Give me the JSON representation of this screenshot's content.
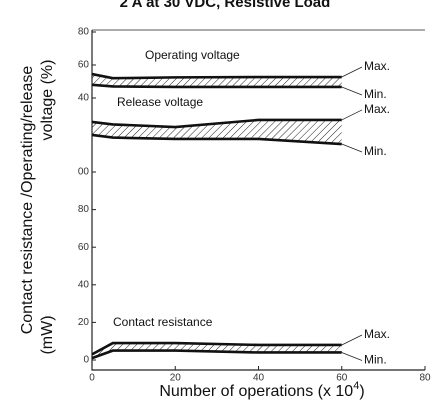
{
  "chart_data": {
    "type": "line",
    "title": "2 A at 30 VDC, Resistive Load",
    "xlabel": [
      "Number of operations (x 10",
      "4",
      ")"
    ],
    "ylabel": [
      "Contact resistance /Operating/release",
      "voltage (%)",
      "(mW)"
    ],
    "xlim": [
      0,
      80
    ],
    "xticks": [
      0,
      20,
      40,
      60,
      80
    ],
    "x": [
      0,
      5,
      20,
      40,
      60
    ],
    "panels": [
      {
        "ylim": [
          0,
          80
        ],
        "yticks": [
          40,
          60,
          80
        ],
        "bands": [
          {
            "label": "Operating voltage",
            "max": {
              "name": "Max.",
              "values": [
                54.5,
                52,
                52.5,
                52.7,
                52.7
              ]
            },
            "min": {
              "name": "Min.",
              "values": [
                48,
                47,
                46.7,
                46.7,
                46.7
              ]
            }
          },
          {
            "label": "Release voltage",
            "max": {
              "name": "Max.",
              "values": [
                25.5,
                24,
                22.4,
                26.7,
                26.7
              ]
            },
            "min": {
              "name": "Min.",
              "values": [
                17.6,
                16,
                15.2,
                15.2,
                12.1
              ]
            }
          }
        ]
      },
      {
        "ylim": [
          0,
          100
        ],
        "yticks": [
          0,
          20,
          40,
          60,
          80,
          {
            "value": 100,
            "label": "00"
          }
        ],
        "bands": [
          {
            "label": "Contact resistance",
            "max": {
              "name": "Max.",
              "values": [
                3,
                9,
                9,
                8,
                8
              ]
            },
            "min": {
              "name": "Min.",
              "values": [
                1,
                5,
                5,
                4,
                4
              ]
            }
          }
        ]
      }
    ]
  }
}
